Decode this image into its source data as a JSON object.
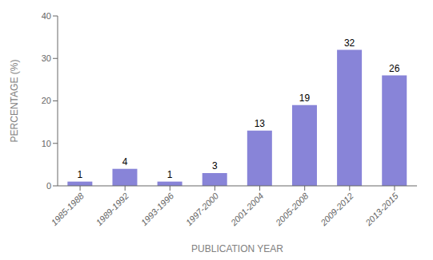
{
  "chart_data": {
    "type": "bar",
    "categories": [
      "1985-1988",
      "1989-1992",
      "1993-1996",
      "1997-2000",
      "2001-2004",
      "2005-2008",
      "2009-2012",
      "2013-2015"
    ],
    "values": [
      1,
      4,
      1,
      3,
      13,
      19,
      32,
      26
    ],
    "xlabel": "PUBLICATION YEAR",
    "ylabel": "PERCENTAGE (%)",
    "ylim": [
      0,
      40
    ],
    "yticks": [
      0,
      10,
      20,
      30,
      40
    ],
    "grid": false,
    "data_labels": true
  }
}
